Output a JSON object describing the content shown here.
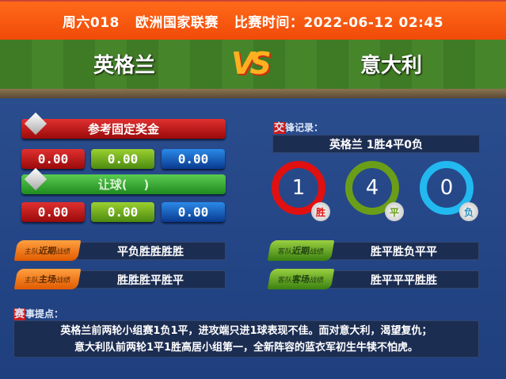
{
  "header": {
    "match_no": "周六018",
    "league": "欧洲国家联赛",
    "time_label": "比赛时间：2022-06-12 02:45"
  },
  "teams": {
    "home": "英格兰",
    "away": "意大利",
    "vs": "VS"
  },
  "odds": {
    "fixed_title": "参考固定奖金",
    "fixed": [
      "0.00",
      "0.00",
      "0.00"
    ],
    "handicap_title": "让球(    )",
    "handicap": [
      "0.00",
      "0.00",
      "0.00"
    ]
  },
  "form": {
    "home_recent_tag": [
      "主队",
      "近期",
      "战绩"
    ],
    "home_recent": "平负胜胜胜胜",
    "home_home_tag": [
      "主队",
      "主场",
      "战绩"
    ],
    "home_home": "胜胜胜平胜平",
    "away_recent_tag": [
      "客队",
      "近期",
      "战绩"
    ],
    "away_recent": "胜平胜负平平",
    "away_away_tag": [
      "客队",
      "客场",
      "战绩"
    ],
    "away_away": "胜平平平胜胜"
  },
  "h2h": {
    "label_first": "交",
    "label_rest": "锋记录：",
    "summary": "英格兰 1胜4平0负",
    "items": [
      {
        "value": "1",
        "label": "胜",
        "color": "#e01010"
      },
      {
        "value": "4",
        "label": "平",
        "color": "#6a9e18"
      },
      {
        "value": "0",
        "label": "负",
        "color": "#22b8f0"
      }
    ]
  },
  "tips": {
    "label_first": "赛",
    "label_rest": "事提点：",
    "line1": "英格兰前两轮小组赛1负1平，进攻端只进1球表现不佳。面对意大利，渴望复仇；",
    "line2": "意大利队前两轮1平1胜高居小组第一，全新阵容的蓝衣军初生牛犊不怕虎。"
  }
}
